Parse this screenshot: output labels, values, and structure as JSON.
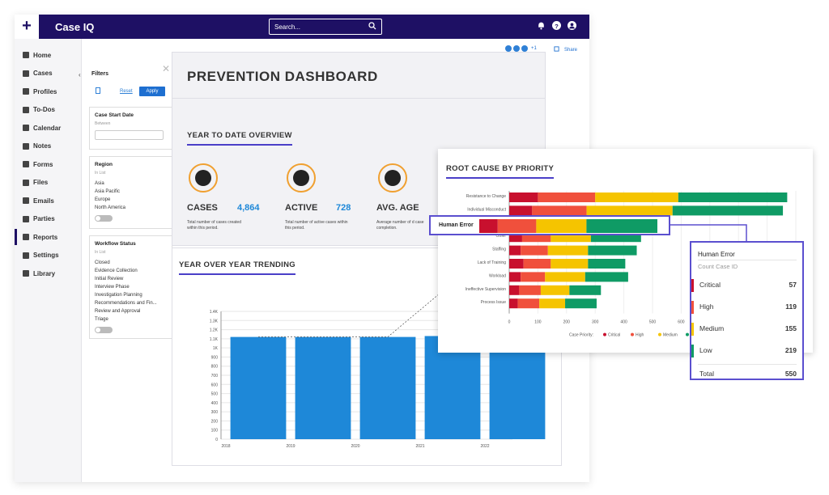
{
  "app": {
    "brand": "Case IQ",
    "search_placeholder": "Search..."
  },
  "sidebar": {
    "items": [
      {
        "label": "Home",
        "icon": "home-icon"
      },
      {
        "label": "Cases",
        "icon": "folder-icon"
      },
      {
        "label": "Profiles",
        "icon": "profile-icon"
      },
      {
        "label": "To-Dos",
        "icon": "checklist-icon"
      },
      {
        "label": "Calendar",
        "icon": "calendar-icon"
      },
      {
        "label": "Notes",
        "icon": "notes-icon"
      },
      {
        "label": "Forms",
        "icon": "forms-icon"
      },
      {
        "label": "Files",
        "icon": "file-icon"
      },
      {
        "label": "Emails",
        "icon": "mail-icon"
      },
      {
        "label": "Parties",
        "icon": "people-icon"
      },
      {
        "label": "Reports",
        "icon": "report-icon",
        "active": true
      },
      {
        "label": "Settings",
        "icon": "gear-icon"
      },
      {
        "label": "Library",
        "icon": "book-icon"
      }
    ]
  },
  "toolbar": {
    "avatar_more": "+1",
    "share_label": "Share"
  },
  "filters": {
    "title": "Filters",
    "reset_label": "Reset",
    "apply_label": "Apply",
    "case_start": {
      "title": "Case Start Date",
      "sub": "Between"
    },
    "region": {
      "title": "Region",
      "sub": "In List",
      "options": [
        "Asia",
        "Asia Pacific",
        "Europe",
        "North America"
      ]
    },
    "workflow": {
      "title": "Workflow Status",
      "sub": "In List",
      "options": [
        "Closed",
        "Evidence Collection",
        "Initial Review",
        "Interview Phase",
        "Investigation Planning",
        "Recommendations and Fin...",
        "Review and Approval",
        "Triage"
      ]
    }
  },
  "dashboard": {
    "title": "PREVENTION DASHBOARD",
    "ytd_title": "YEAR TO DATE OVERVIEW",
    "metrics": [
      {
        "label": "CASES",
        "value": "4,864",
        "desc": "Total number of cases created within this period."
      },
      {
        "label": "ACTIVE",
        "value": "728",
        "desc": "Total number of active cases within this period."
      },
      {
        "label": "AVG. AGE",
        "value": "",
        "desc": "Average number of d case completion."
      }
    ],
    "yoy_title": "YEAR OVER YEAR TRENDING"
  },
  "chart_data": [
    {
      "type": "bar",
      "title": "YEAR OVER YEAR TRENDING",
      "categories": [
        "2018",
        "2019",
        "2020",
        "2021",
        "2022"
      ],
      "values": [
        1120,
        1120,
        1120,
        1130,
        1120
      ],
      "ylim": [
        0,
        1400
      ],
      "yticks": [
        "0",
        "100",
        "200",
        "300",
        "400",
        "500",
        "600",
        "700",
        "800",
        "900",
        "1K",
        "1.1K",
        "1.2K",
        "1.3K",
        "1.4K"
      ],
      "color": "#1e88d8"
    },
    {
      "type": "bar",
      "orientation": "horizontal",
      "stacked": true,
      "title": "ROOT CAUSE BY PRIORITY",
      "categories": [
        "Resistance to Change",
        "Individual Misconduct",
        "Human Error",
        "Other",
        "Staffing",
        "Lack of Training",
        "Workload",
        "Ineffective Supervision",
        "Process Issue"
      ],
      "series": [
        {
          "name": "Critical",
          "color": "#c8102e",
          "values": [
            100,
            80,
            57,
            45,
            40,
            50,
            40,
            35,
            30
          ]
        },
        {
          "name": "High",
          "color": "#f0503c",
          "values": [
            200,
            190,
            119,
            100,
            95,
            95,
            85,
            75,
            75
          ]
        },
        {
          "name": "Medium",
          "color": "#f5c400",
          "values": [
            290,
            300,
            155,
            140,
            140,
            130,
            140,
            100,
            90
          ]
        },
        {
          "name": "Low",
          "color": "#0f9b65",
          "values": [
            380,
            385,
            219,
            175,
            170,
            130,
            150,
            110,
            110
          ]
        }
      ],
      "xticks": [
        "0",
        "100",
        "200",
        "300",
        "400",
        "500",
        "600",
        "700",
        "800",
        "900",
        "1,000"
      ],
      "xlim": [
        0,
        1000
      ],
      "legend_title": "Case Priority:"
    }
  ],
  "human_error": {
    "label": "Human Error",
    "tooltip_title": "Human Error",
    "tooltip_sub": "Count Case ID",
    "rows": [
      {
        "name": "Critical",
        "value": "57",
        "color": "#c8102e"
      },
      {
        "name": "High",
        "value": "119",
        "color": "#f0503c"
      },
      {
        "name": "Medium",
        "value": "155",
        "color": "#f5c400"
      },
      {
        "name": "Low",
        "value": "219",
        "color": "#0f9b65"
      }
    ],
    "total_label": "Total",
    "total_value": "550"
  }
}
